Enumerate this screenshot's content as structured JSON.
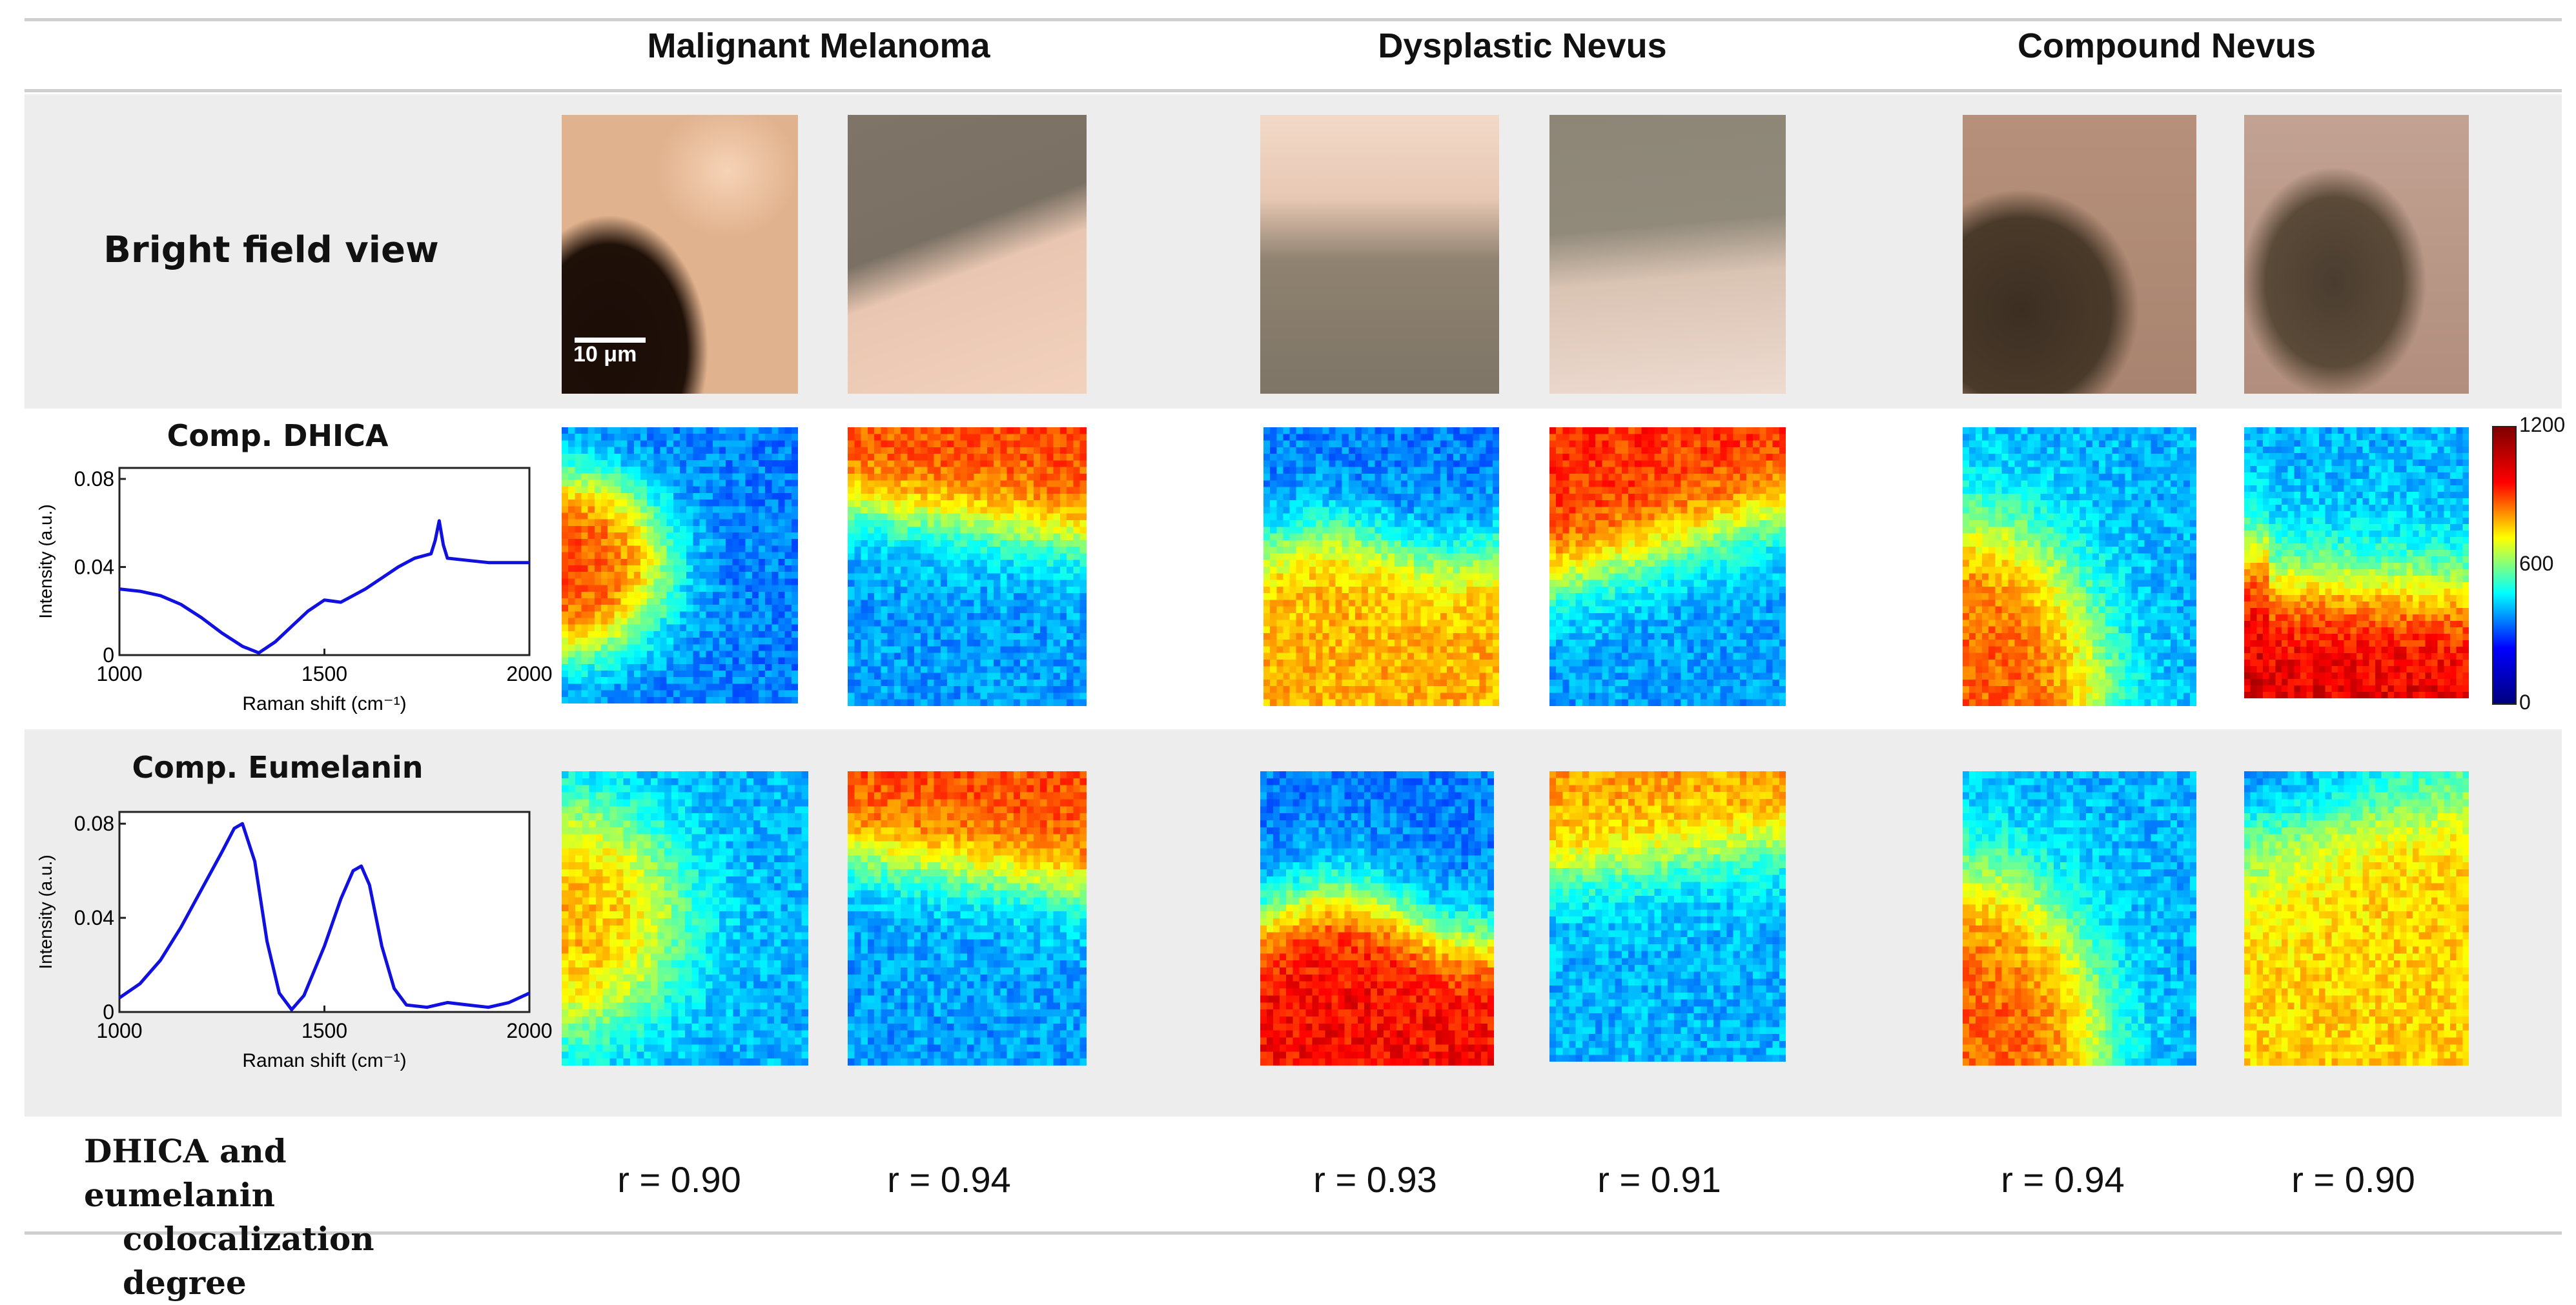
{
  "columns": [
    {
      "title": "Malignant Melanoma"
    },
    {
      "title": "Dysplastic Nevus"
    },
    {
      "title": "Compound Nevus"
    }
  ],
  "rows": {
    "bright_field": "Bright field view",
    "dhica": "Comp. DHICA",
    "eumelanin": "Comp. Eumelanin",
    "colocalization_line1": "DHICA and eumelanin",
    "colocalization_line2": "colocalization degree"
  },
  "scale_bar": "10 μm",
  "colorbar": {
    "max": "1200",
    "mid": "600",
    "min": "0",
    "colors": [
      "#00007f",
      "#0000ff",
      "#00ffff",
      "#ffff00",
      "#ff0000",
      "#7f0000"
    ]
  },
  "r_values": [
    "r = 0.90",
    "r = 0.94",
    "r = 0.93",
    "r = 0.91",
    "r = 0.94",
    "r = 0.90"
  ],
  "chart_data": [
    {
      "type": "line",
      "title": "Comp. DHICA",
      "xlabel": "Raman shift (cm⁻¹)",
      "ylabel": "Intensity (a.u.)",
      "xlim": [
        1000,
        2000
      ],
      "ylim": [
        0,
        0.085
      ],
      "xticks": [
        "1000",
        "1500",
        "2000"
      ],
      "yticks": [
        "0",
        "0.04",
        "0.08"
      ],
      "x": [
        1000,
        1050,
        1100,
        1150,
        1200,
        1250,
        1300,
        1340,
        1380,
        1420,
        1460,
        1500,
        1540,
        1560,
        1600,
        1640,
        1680,
        1720,
        1760,
        1770,
        1780,
        1790,
        1800,
        1850,
        1900,
        1950,
        2000
      ],
      "values": [
        0.03,
        0.029,
        0.027,
        0.023,
        0.017,
        0.01,
        0.004,
        0.001,
        0.006,
        0.013,
        0.02,
        0.025,
        0.024,
        0.026,
        0.03,
        0.035,
        0.04,
        0.044,
        0.046,
        0.052,
        0.061,
        0.05,
        0.044,
        0.043,
        0.042,
        0.042,
        0.042
      ]
    },
    {
      "type": "line",
      "title": "Comp. Eumelanin",
      "xlabel": "Raman shift (cm⁻¹)",
      "ylabel": "Intensity (a.u.)",
      "xlim": [
        1000,
        2000
      ],
      "ylim": [
        0,
        0.085
      ],
      "xticks": [
        "1000",
        "1500",
        "2000"
      ],
      "yticks": [
        "0",
        "0.04",
        "0.08"
      ],
      "x": [
        1000,
        1050,
        1100,
        1150,
        1200,
        1250,
        1280,
        1300,
        1330,
        1360,
        1390,
        1420,
        1450,
        1500,
        1540,
        1570,
        1590,
        1610,
        1640,
        1670,
        1700,
        1750,
        1800,
        1850,
        1900,
        1950,
        2000
      ],
      "values": [
        0.006,
        0.012,
        0.022,
        0.036,
        0.052,
        0.068,
        0.078,
        0.08,
        0.064,
        0.03,
        0.008,
        0.001,
        0.007,
        0.028,
        0.048,
        0.06,
        0.062,
        0.054,
        0.028,
        0.01,
        0.003,
        0.002,
        0.004,
        0.003,
        0.002,
        0.004,
        0.008
      ]
    }
  ]
}
